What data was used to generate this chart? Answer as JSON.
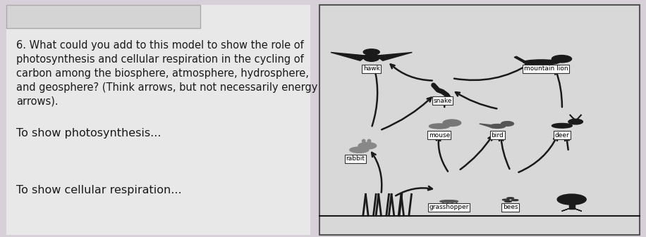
{
  "bg_color": "#d8d0d8",
  "left_panel_bg": "#e8e8e8",
  "right_panel_bg": "#d8d8d8",
  "question_number": "6.",
  "question_text": "What could you add to this model to show the role of\nphotosynthesis and cellular respiration in the cycling of\ncarbon among the biosphere, atmosphere, hydrosphere,\nand geosphere? (Think arrows, but not necessarily energy\narrows).",
  "label1": "To show photosynthesis...",
  "label2": "To show cellular respiration...",
  "text_color": "#1a1a1a",
  "font_size_q": 10.5,
  "font_size_label": 11.5,
  "right_panel_border": "#555555"
}
